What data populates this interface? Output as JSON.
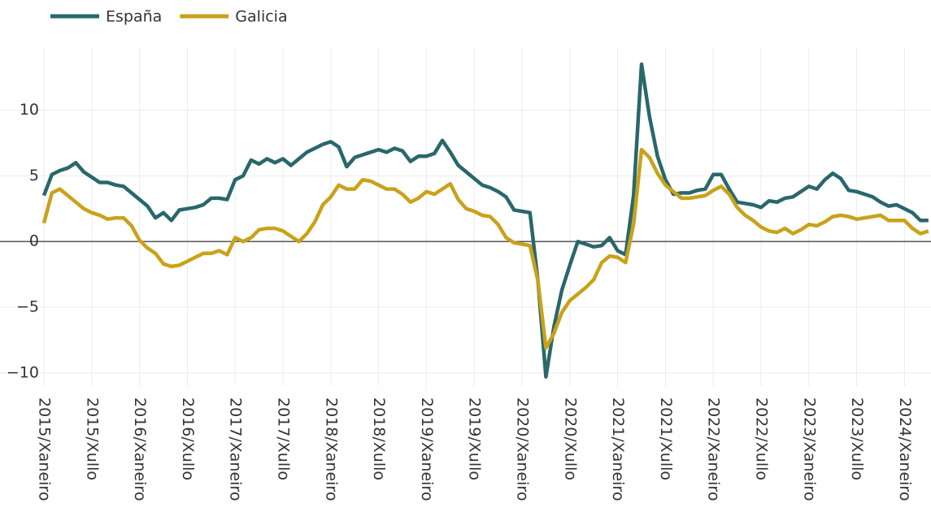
{
  "chart_data": {
    "type": "line",
    "categories": [
      "2015/Xaneiro",
      null,
      null,
      null,
      null,
      null,
      "2015/Xullo",
      null,
      null,
      null,
      null,
      null,
      "2016/Xaneiro",
      null,
      null,
      null,
      null,
      null,
      "2016/Xullo",
      null,
      null,
      null,
      null,
      null,
      "2017/Xaneiro",
      null,
      null,
      null,
      null,
      null,
      "2017/Xullo",
      null,
      null,
      null,
      null,
      null,
      "2018/Xaneiro",
      null,
      null,
      null,
      null,
      null,
      "2018/Xullo",
      null,
      null,
      null,
      null,
      null,
      "2019/Xaneiro",
      null,
      null,
      null,
      null,
      null,
      "2019/Xullo",
      null,
      null,
      null,
      null,
      null,
      "2020/Xaneiro",
      null,
      null,
      null,
      null,
      null,
      "2020/Xullo",
      null,
      null,
      null,
      null,
      null,
      "2021/Xaneiro",
      null,
      null,
      null,
      null,
      null,
      "2021/Xullo",
      null,
      null,
      null,
      null,
      null,
      "2022/Xaneiro",
      null,
      null,
      null,
      null,
      null,
      "2022/Xullo",
      null,
      null,
      null,
      null,
      null,
      "2023/Xaneiro",
      null,
      null,
      null,
      null,
      null,
      "2023/Xullo",
      null,
      null,
      null,
      null,
      null,
      "2024/Xaneiro",
      null,
      null,
      null
    ],
    "series": [
      {
        "name": "España",
        "color": "#29686a",
        "values": [
          3.5,
          5.1,
          5.4,
          5.6,
          6.0,
          5.3,
          4.9,
          4.5,
          4.5,
          4.3,
          4.2,
          3.7,
          3.2,
          2.7,
          1.8,
          2.2,
          1.6,
          2.4,
          2.5,
          2.6,
          2.8,
          3.3,
          3.3,
          3.2,
          4.7,
          5.0,
          6.2,
          5.9,
          6.3,
          6.0,
          6.3,
          5.8,
          6.3,
          6.8,
          7.1,
          7.4,
          7.6,
          7.2,
          5.7,
          6.4,
          6.6,
          6.8,
          7.0,
          6.8,
          7.1,
          6.9,
          6.1,
          6.5,
          6.5,
          6.7,
          7.7,
          6.8,
          5.8,
          5.3,
          4.8,
          4.3,
          4.1,
          3.8,
          3.4,
          2.4,
          2.3,
          2.2,
          -3.0,
          -10.3,
          -6.5,
          -3.7,
          -1.8,
          0.0,
          -0.2,
          -0.4,
          -0.3,
          0.3,
          -0.7,
          -1.0,
          3.5,
          13.5,
          9.5,
          6.5,
          4.7,
          3.6,
          3.7,
          3.7,
          3.9,
          4.0,
          5.1,
          5.1,
          4.0,
          3.0,
          2.9,
          2.8,
          2.6,
          3.1,
          3.0,
          3.3,
          3.4,
          3.8,
          4.2,
          4.0,
          4.7,
          5.2,
          4.8,
          3.9,
          3.8,
          3.6,
          3.4,
          3.0,
          2.7,
          2.8,
          2.5,
          2.2,
          1.6,
          1.6
        ]
      },
      {
        "name": "Galicia",
        "color": "#c9a21a",
        "values": [
          1.4,
          3.7,
          4.0,
          3.5,
          3.0,
          2.5,
          2.2,
          2.0,
          1.7,
          1.8,
          1.8,
          1.2,
          0.1,
          -0.5,
          -0.9,
          -1.7,
          -1.9,
          -1.8,
          -1.5,
          -1.2,
          -0.9,
          -0.9,
          -0.7,
          -1.0,
          0.3,
          0.0,
          0.3,
          0.9,
          1.0,
          1.0,
          0.8,
          0.4,
          0.0,
          0.6,
          1.5,
          2.8,
          3.4,
          4.3,
          4.0,
          4.0,
          4.7,
          4.6,
          4.3,
          4.0,
          4.0,
          3.6,
          3.0,
          3.3,
          3.8,
          3.6,
          4.0,
          4.4,
          3.2,
          2.5,
          2.3,
          2.0,
          1.9,
          1.3,
          0.3,
          -0.1,
          -0.2,
          -0.3,
          -3.0,
          -8.1,
          -7.0,
          -5.4,
          -4.5,
          -4.0,
          -3.5,
          -2.9,
          -1.6,
          -1.1,
          -1.2,
          -1.6,
          1.3,
          7.0,
          6.4,
          5.2,
          4.3,
          3.8,
          3.3,
          3.3,
          3.4,
          3.5,
          3.9,
          4.2,
          3.6,
          2.6,
          2.0,
          1.6,
          1.1,
          0.8,
          0.7,
          1.0,
          0.6,
          0.9,
          1.3,
          1.2,
          1.5,
          1.9,
          2.0,
          1.9,
          1.7,
          1.8,
          1.9,
          2.0,
          1.6,
          1.6,
          1.6,
          1.0,
          0.6,
          0.8
        ]
      }
    ],
    "ylim": [
      -11,
      14.8
    ],
    "yticks": [
      {
        "value": -10,
        "label": "−10"
      },
      {
        "value": -5,
        "label": "−5"
      },
      0,
      5,
      10
    ],
    "grid": true,
    "legend": "top-left"
  }
}
